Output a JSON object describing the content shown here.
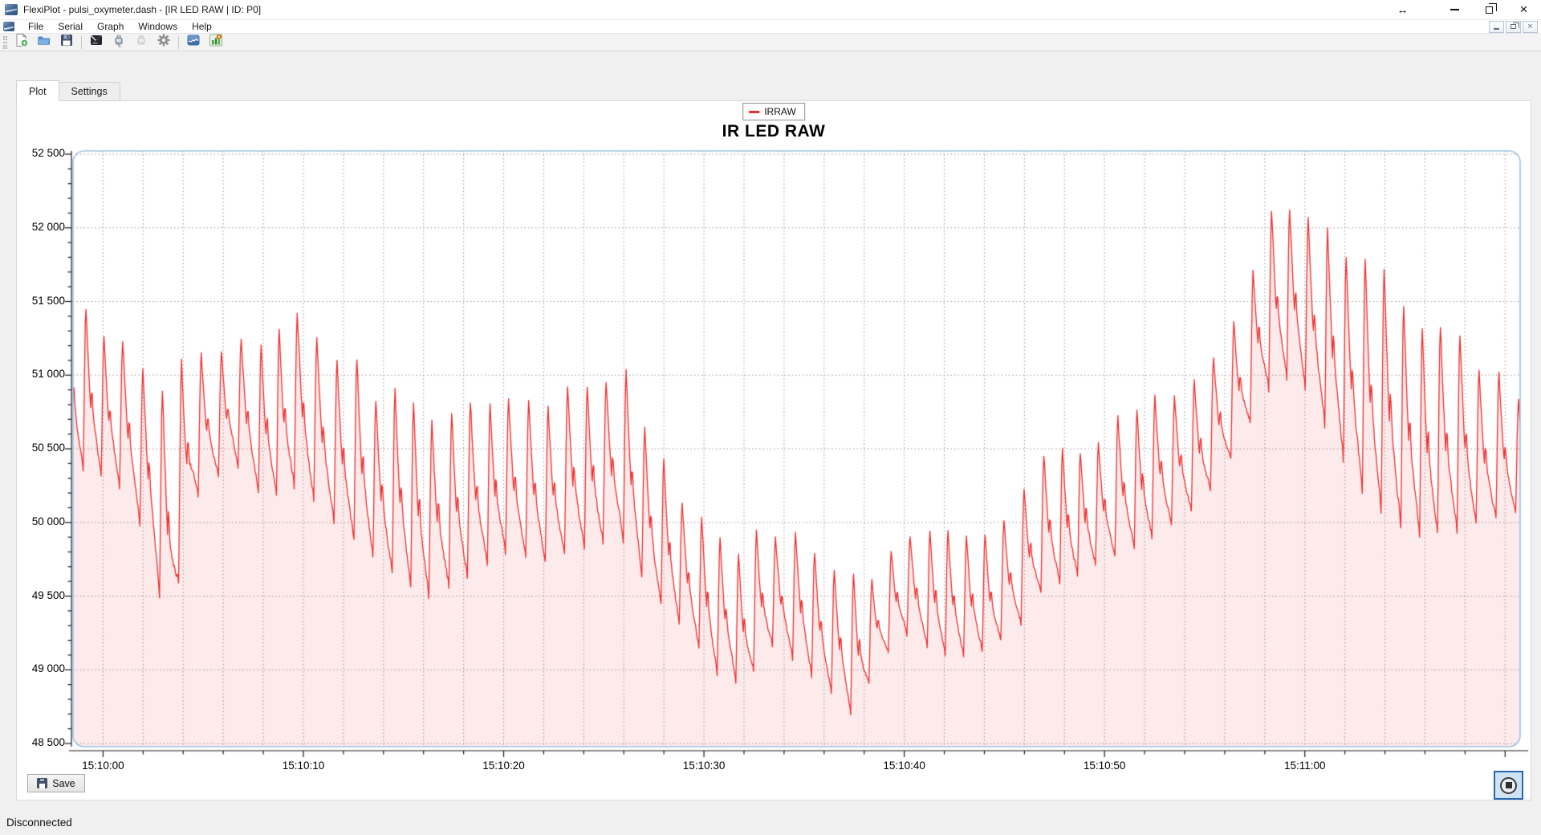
{
  "window": {
    "title": "FlexiPlot - pulsi_oxymeter.dash - [IR LED RAW | ID: P0]",
    "controls": {
      "resize_glyph": "↔",
      "close_glyph": "×"
    },
    "control_names": [
      "resize-horizontal",
      "minimize",
      "restore",
      "close"
    ],
    "mdi_buttons": [
      "minimize",
      "restore",
      "close"
    ],
    "mdi_glyphs": {
      "close": "×"
    }
  },
  "menu": {
    "items": [
      "File",
      "Serial",
      "Graph",
      "Windows",
      "Help"
    ]
  },
  "toolbar": {
    "items": [
      "new-file",
      "open-folder",
      "save",
      "separator",
      "serial-terminal",
      "connect",
      "disconnect",
      "settings",
      "separator",
      "plot-window",
      "chart-export"
    ]
  },
  "tabs": [
    {
      "label": "Plot",
      "active": true
    },
    {
      "label": "Settings",
      "active": false
    }
  ],
  "panel": {
    "save_label": "Save"
  },
  "statusbar": {
    "text": "Disconnected"
  },
  "chart_data": {
    "type": "line",
    "title": "IR LED RAW",
    "legend_position": "top-center",
    "series": [
      {
        "name": "IRRAW",
        "color": "#ee2e2e",
        "fill": "rgba(238,46,46,0.10)"
      }
    ],
    "x_axis": {
      "t_min": -1.5,
      "t_max": 70.75,
      "major_interval_s": 10,
      "minor_interval_s": 2,
      "major_ticks": [
        {
          "t": 0,
          "label": "15:10:00"
        },
        {
          "t": 10,
          "label": "15:10:10"
        },
        {
          "t": 20,
          "label": "15:10:20"
        },
        {
          "t": 30,
          "label": "15:10:30"
        },
        {
          "t": 40,
          "label": "15:10:40"
        },
        {
          "t": 50,
          "label": "15:10:50"
        },
        {
          "t": 60,
          "label": "15:11:00"
        }
      ]
    },
    "y_axis": {
      "min": 48500,
      "max": 52500,
      "major_step": 500,
      "minor_step": 100,
      "ticks": [
        {
          "v": 52500,
          "label": "52 500"
        },
        {
          "v": 52000,
          "label": "52 000"
        },
        {
          "v": 51500,
          "label": "51 500"
        },
        {
          "v": 51000,
          "label": "51 000"
        },
        {
          "v": 50500,
          "label": "50 500"
        },
        {
          "v": 50000,
          "label": "50 000"
        },
        {
          "v": 49500,
          "label": "49 500"
        },
        {
          "v": 49000,
          "label": "49 000"
        },
        {
          "v": 48500,
          "label": "48 500"
        }
      ]
    },
    "grid": {
      "horizontal_every": 500,
      "vertical_every_s": 2,
      "style": "dotted",
      "color": "#9b9b9b"
    },
    "plot_border_color": "#9cc3e4",
    "signal": {
      "description": "photoplethysmogram raw IR samples; envelope keyframes (seconds after 15:10:00)",
      "beat_period_s": 0.95,
      "beat_jitter_s": 0.07,
      "samples_per_beat": 26,
      "envelope": [
        {
          "t": -1.5,
          "peak": 51520,
          "trough": 50380
        },
        {
          "t": 0.5,
          "peak": 51230,
          "trough": 50300
        },
        {
          "t": 2.0,
          "peak": 51150,
          "trough": 49950
        },
        {
          "t": 3.3,
          "peak": 51000,
          "trough": 49230
        },
        {
          "t": 4.5,
          "peak": 51120,
          "trough": 50150
        },
        {
          "t": 6.5,
          "peak": 51300,
          "trough": 50400
        },
        {
          "t": 8.0,
          "peak": 51200,
          "trough": 50150
        },
        {
          "t": 9.8,
          "peak": 51470,
          "trough": 50250
        },
        {
          "t": 11.5,
          "peak": 51150,
          "trough": 50000
        },
        {
          "t": 13.5,
          "peak": 50920,
          "trough": 49750
        },
        {
          "t": 16.0,
          "peak": 50720,
          "trough": 49480
        },
        {
          "t": 18.0,
          "peak": 50870,
          "trough": 49600
        },
        {
          "t": 20.0,
          "peak": 50920,
          "trough": 49800
        },
        {
          "t": 22.0,
          "peak": 50880,
          "trough": 49720
        },
        {
          "t": 24.0,
          "peak": 50960,
          "trough": 49820
        },
        {
          "t": 25.8,
          "peak": 51010,
          "trough": 49900
        },
        {
          "t": 27.5,
          "peak": 50620,
          "trough": 49480
        },
        {
          "t": 29.2,
          "peak": 50120,
          "trough": 49260
        },
        {
          "t": 30.5,
          "peak": 49940,
          "trough": 48980
        },
        {
          "t": 32.0,
          "peak": 49860,
          "trough": 48900
        },
        {
          "t": 33.5,
          "peak": 49950,
          "trough": 49180
        },
        {
          "t": 35.0,
          "peak": 49900,
          "trough": 49000
        },
        {
          "t": 36.5,
          "peak": 49750,
          "trough": 48820
        },
        {
          "t": 37.5,
          "peak": 49690,
          "trough": 48660
        },
        {
          "t": 38.5,
          "peak": 49660,
          "trough": 49000
        },
        {
          "t": 40.0,
          "peak": 49910,
          "trough": 49240
        },
        {
          "t": 41.5,
          "peak": 50000,
          "trough": 49120
        },
        {
          "t": 43.0,
          "peak": 49920,
          "trough": 49080
        },
        {
          "t": 44.5,
          "peak": 49950,
          "trough": 49160
        },
        {
          "t": 45.8,
          "peak": 50200,
          "trough": 49300
        },
        {
          "t": 47.0,
          "peak": 50490,
          "trough": 49560
        },
        {
          "t": 48.5,
          "peak": 50460,
          "trough": 49620
        },
        {
          "t": 50.0,
          "peak": 50650,
          "trough": 49740
        },
        {
          "t": 51.5,
          "peak": 50740,
          "trough": 49820
        },
        {
          "t": 53.0,
          "peak": 50840,
          "trough": 49950
        },
        {
          "t": 54.5,
          "peak": 51010,
          "trough": 50080
        },
        {
          "t": 56.0,
          "peak": 51230,
          "trough": 50350
        },
        {
          "t": 57.2,
          "peak": 51560,
          "trough": 50650
        },
        {
          "t": 58.4,
          "peak": 52210,
          "trough": 50950
        },
        {
          "t": 59.6,
          "peak": 52140,
          "trough": 51000
        },
        {
          "t": 60.8,
          "peak": 52000,
          "trough": 50700
        },
        {
          "t": 62.0,
          "peak": 51930,
          "trough": 50400
        },
        {
          "t": 63.2,
          "peak": 51700,
          "trough": 50150
        },
        {
          "t": 64.5,
          "peak": 51520,
          "trough": 49980
        },
        {
          "t": 66.0,
          "peak": 51330,
          "trough": 49900
        },
        {
          "t": 67.3,
          "peak": 51210,
          "trough": 49930
        },
        {
          "t": 68.5,
          "peak": 51120,
          "trough": 49980
        },
        {
          "t": 69.8,
          "peak": 50940,
          "trough": 50030
        },
        {
          "t": 70.8,
          "peak": 50780,
          "trough": 50080
        }
      ]
    }
  }
}
